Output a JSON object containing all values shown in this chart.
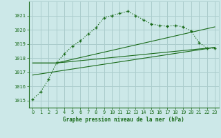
{
  "bg_color": "#cce8e8",
  "grid_color": "#aacccc",
  "line_color": "#1a6b1a",
  "xlabel": "Graphe pression niveau de la mer (hPa)",
  "xlim": [
    -0.5,
    23.5
  ],
  "ylim": [
    1014.5,
    1022.0
  ],
  "yticks": [
    1015,
    1016,
    1017,
    1018,
    1019,
    1020,
    1021
  ],
  "xticks": [
    0,
    1,
    2,
    3,
    4,
    5,
    6,
    7,
    8,
    9,
    10,
    11,
    12,
    13,
    14,
    15,
    16,
    17,
    18,
    19,
    20,
    21,
    22,
    23
  ],
  "series1_x": [
    0,
    1,
    2,
    3,
    4,
    5,
    6,
    7,
    8,
    9,
    10,
    11,
    12,
    13,
    14,
    15,
    16,
    17,
    18,
    19,
    20,
    21,
    22,
    23
  ],
  "series1_y": [
    1015.1,
    1015.6,
    1016.5,
    1017.65,
    1018.3,
    1018.85,
    1019.2,
    1019.7,
    1020.15,
    1020.85,
    1021.0,
    1021.15,
    1021.3,
    1021.0,
    1020.7,
    1020.4,
    1020.3,
    1020.25,
    1020.3,
    1020.2,
    1019.9,
    1019.1,
    1018.7,
    1018.7
  ],
  "series2_x": [
    0,
    3,
    23
  ],
  "series2_y": [
    1017.65,
    1017.65,
    1018.75
  ],
  "series3_x": [
    0,
    3,
    23
  ],
  "series3_y": [
    1017.65,
    1017.65,
    1020.2
  ],
  "series4_x": [
    0,
    23
  ],
  "series4_y": [
    1016.8,
    1018.75
  ]
}
